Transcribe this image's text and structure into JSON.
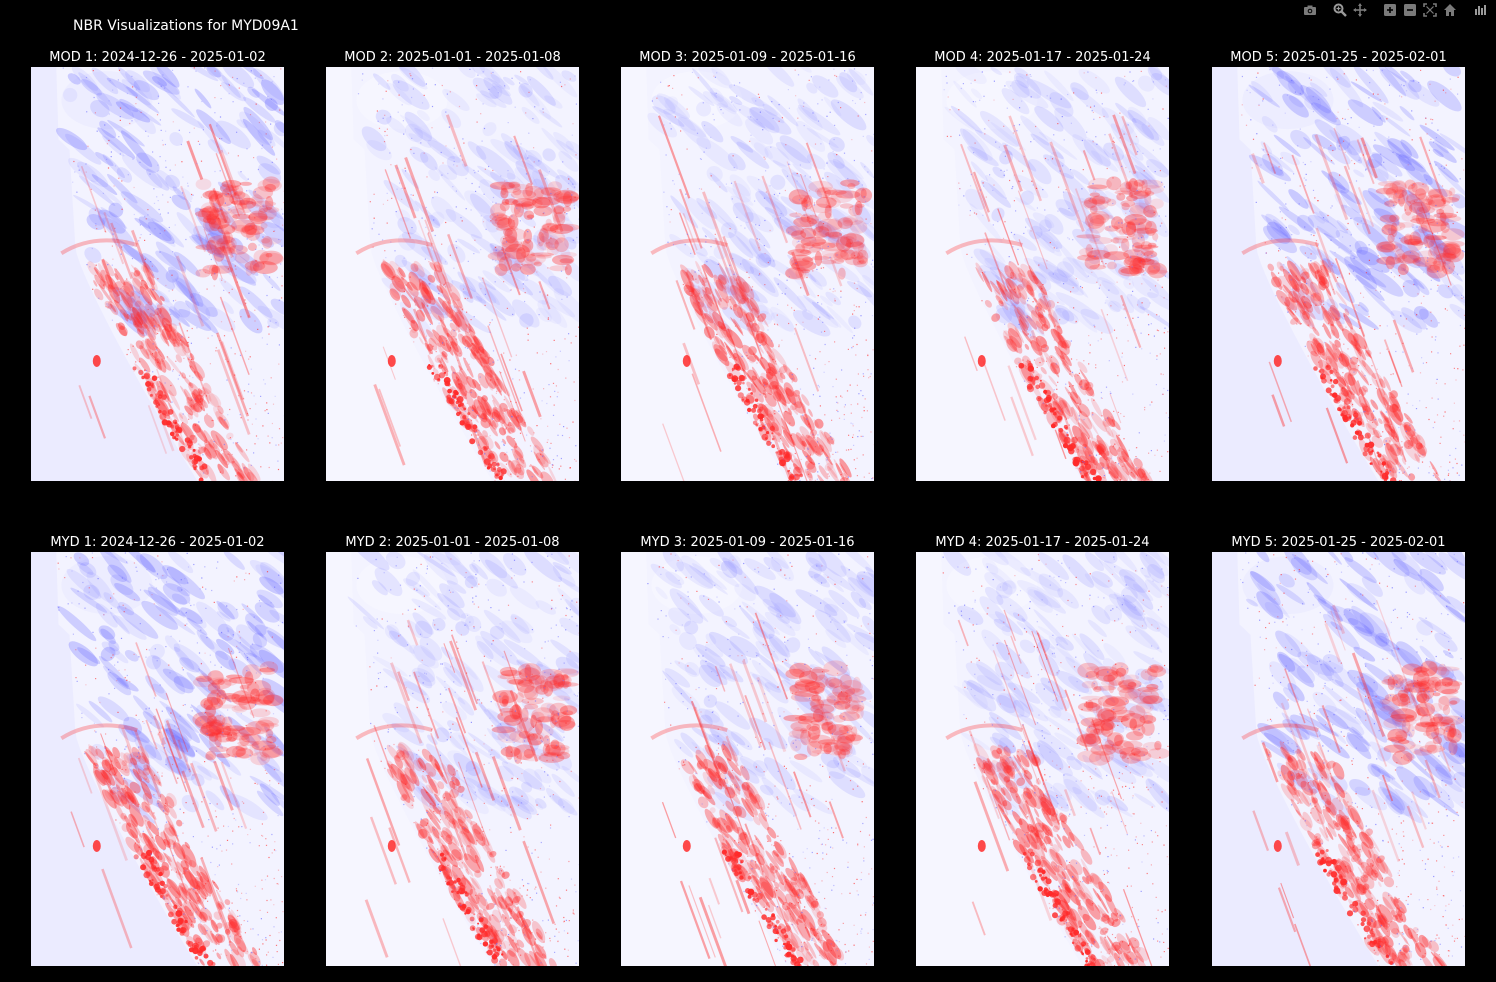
{
  "page": {
    "title": "NBR Visualizations for MYD09A1"
  },
  "modebar": {
    "buttons": [
      {
        "name": "camera-icon",
        "icon": "camera"
      },
      {
        "name": "zoom-icon",
        "icon": "zoom"
      },
      {
        "name": "pan-icon",
        "icon": "pan"
      },
      {
        "name": "zoom-in-icon",
        "icon": "plus-box"
      },
      {
        "name": "zoom-out-icon",
        "icon": "minus-box"
      },
      {
        "name": "autoscale-icon",
        "icon": "autoscale"
      },
      {
        "name": "reset-axes-icon",
        "icon": "home"
      },
      {
        "name": "plotly-logo-icon",
        "icon": "bars"
      }
    ]
  },
  "colors": {
    "background": "#000000",
    "text": "#ffffff",
    "land_base": "#f6f6ff",
    "ocean": "#ebebff",
    "red": "#ff2a2a",
    "blue": "#6a6aff",
    "modebar_icon": "#7a7a7a"
  },
  "panels": [
    {
      "title": "MOD 1: 2024-12-26 - 2025-01-02"
    },
    {
      "title": "MOD 2: 2025-01-01 - 2025-01-08"
    },
    {
      "title": "MOD 3: 2025-01-09 - 2025-01-16"
    },
    {
      "title": "MOD 4: 2025-01-17 - 2025-01-24"
    },
    {
      "title": "MOD 5: 2025-01-25 - 2025-02-01"
    },
    {
      "title": "MYD 1: 2024-12-26 - 2025-01-02"
    },
    {
      "title": "MYD 2: 2025-01-01 - 2025-01-08"
    },
    {
      "title": "MYD 3: 2025-01-09 - 2025-01-16"
    },
    {
      "title": "MYD 4: 2025-01-17 - 2025-01-24"
    },
    {
      "title": "MYD 5: 2025-01-25 - 2025-02-01"
    }
  ]
}
